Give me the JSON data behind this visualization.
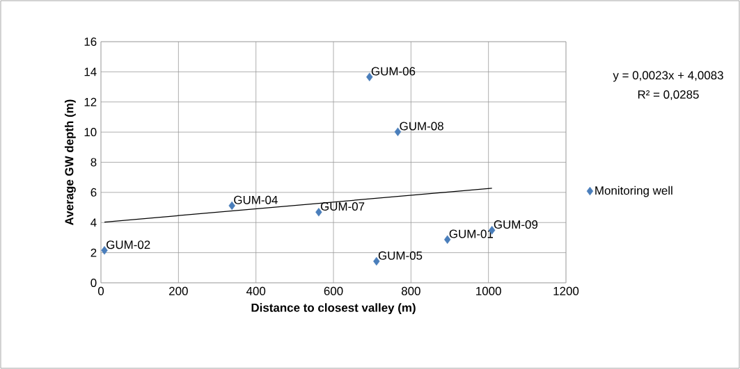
{
  "chart_data": {
    "type": "scatter",
    "xlabel": "Distance to closest valley (m)",
    "ylabel": "Average GW depth (m)",
    "series": [
      {
        "name": "Monitoring well",
        "marker": "diamond",
        "color": "#4a7ebb",
        "x": [
          9,
          338,
          562,
          693,
          766,
          711,
          894,
          1009
        ],
        "values": [
          2.15,
          5.12,
          4.69,
          13.66,
          10.02,
          1.43,
          2.87,
          3.49
        ]
      },
      {
        "type": "line",
        "color": "#000000",
        "x": [
          9,
          1009
        ],
        "values": [
          4.03,
          6.28
        ]
      }
    ],
    "annotations": [
      "y = 0,0023x + 4,0083",
      "R² = 0,0285",
      {
        "text": "GUM-02",
        "x": 9,
        "y": 2.15
      },
      {
        "text": "GUM-04",
        "x": 338,
        "y": 5.12
      },
      {
        "text": "GUM-07",
        "x": 562,
        "y": 4.69
      },
      {
        "text": "GUM-06",
        "x": 693,
        "y": 13.66
      },
      {
        "text": "GUM-08",
        "x": 766,
        "y": 10.02
      },
      {
        "text": "GUM-05",
        "x": 711,
        "y": 1.43
      },
      {
        "text": "GUM-01",
        "x": 894,
        "y": 2.87
      },
      {
        "text": "GUM-09",
        "x": 1009,
        "y": 3.49
      }
    ],
    "xlim": [
      0,
      1200
    ],
    "ylim": [
      0,
      16
    ],
    "xticks": [
      0,
      200,
      400,
      600,
      800,
      1000,
      1200
    ],
    "yticks": [
      0,
      2,
      4,
      6,
      8,
      10,
      12,
      14,
      16
    ],
    "grid": true,
    "legend": "right"
  }
}
